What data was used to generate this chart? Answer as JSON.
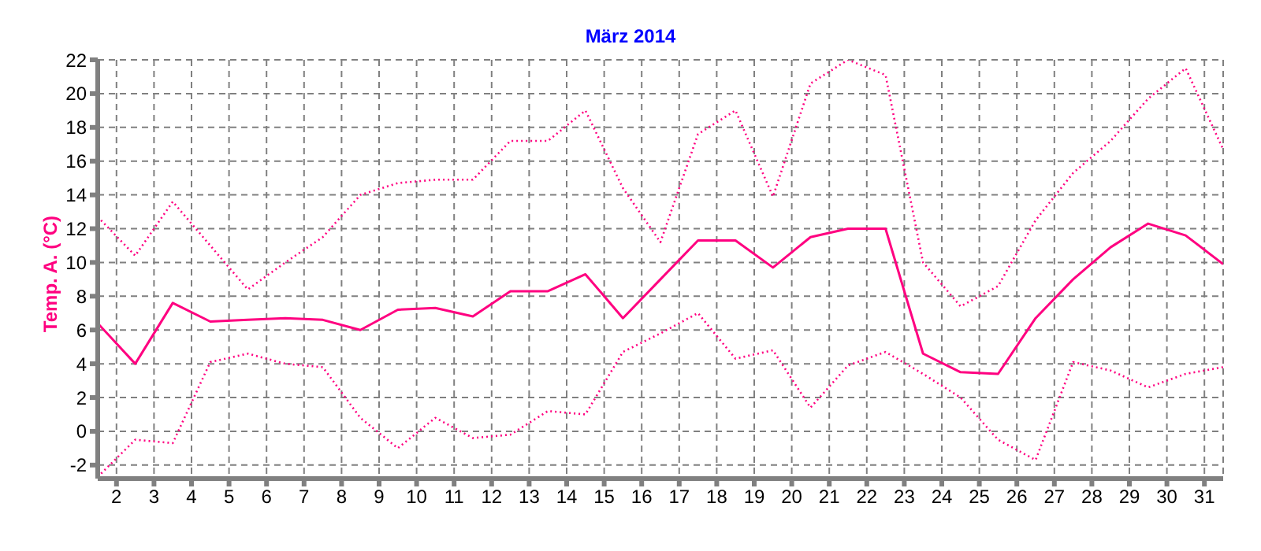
{
  "chart_data": {
    "type": "line",
    "title": "März 2014",
    "ylabel": "Temp. A. (°C)",
    "x": [
      1.5,
      2.5,
      3.5,
      4.5,
      5.5,
      6.5,
      7.5,
      8.5,
      9.5,
      10.5,
      11.5,
      12.5,
      13.5,
      14.5,
      15.5,
      16.5,
      17.5,
      18.5,
      19.5,
      20.5,
      21.5,
      22.5,
      23.5,
      24.5,
      25.5,
      26.5,
      27.5,
      28.5,
      29.5,
      30.5,
      31.5
    ],
    "series": [
      {
        "color": "#ff0080",
        "line_style": "dotted",
        "values": [
          12.7,
          10.4,
          13.6,
          11.0,
          8.4,
          10.0,
          11.5,
          14.0,
          14.7,
          14.9,
          14.9,
          17.2,
          17.2,
          19.0,
          14.4,
          11.2,
          17.6,
          19.0,
          13.9,
          20.6,
          22.0,
          21.1,
          10.0,
          7.4,
          8.6,
          12.5,
          15.3,
          17.2,
          19.7,
          21.5,
          16.7
        ]
      },
      {
        "color": "#ff0080",
        "line_style": "solid",
        "values": [
          6.4,
          4.0,
          7.6,
          6.5,
          6.6,
          6.7,
          6.6,
          6.0,
          7.2,
          7.3,
          6.8,
          8.3,
          8.3,
          9.3,
          6.7,
          9.0,
          11.3,
          11.3,
          9.7,
          11.5,
          12.0,
          12.0,
          4.6,
          3.5,
          3.4,
          6.7,
          9.0,
          10.9,
          12.3,
          11.6,
          9.9
        ]
      },
      {
        "color": "#ff0080",
        "line_style": "dotted",
        "values": [
          -2.7,
          -0.5,
          -0.7,
          4.1,
          4.6,
          4.0,
          3.8,
          0.8,
          -1.0,
          0.8,
          -0.4,
          -0.2,
          1.2,
          1.0,
          4.7,
          5.8,
          7.0,
          4.3,
          4.8,
          1.4,
          3.9,
          4.7,
          3.4,
          2.0,
          -0.5,
          -1.7,
          4.1,
          3.6,
          2.6,
          3.4,
          3.8
        ]
      }
    ],
    "xlim": [
      1.5,
      31.5
    ],
    "xticks": [
      2,
      3,
      4,
      5,
      6,
      7,
      8,
      9,
      10,
      11,
      12,
      13,
      14,
      15,
      16,
      17,
      18,
      19,
      20,
      21,
      22,
      23,
      24,
      25,
      26,
      27,
      28,
      29,
      30,
      31
    ],
    "ylim": [
      -2.8,
      22
    ],
    "yticks": [
      -2,
      0,
      2,
      4,
      6,
      8,
      10,
      12,
      14,
      16,
      18,
      20,
      22
    ],
    "grid": true,
    "marker": "none"
  }
}
